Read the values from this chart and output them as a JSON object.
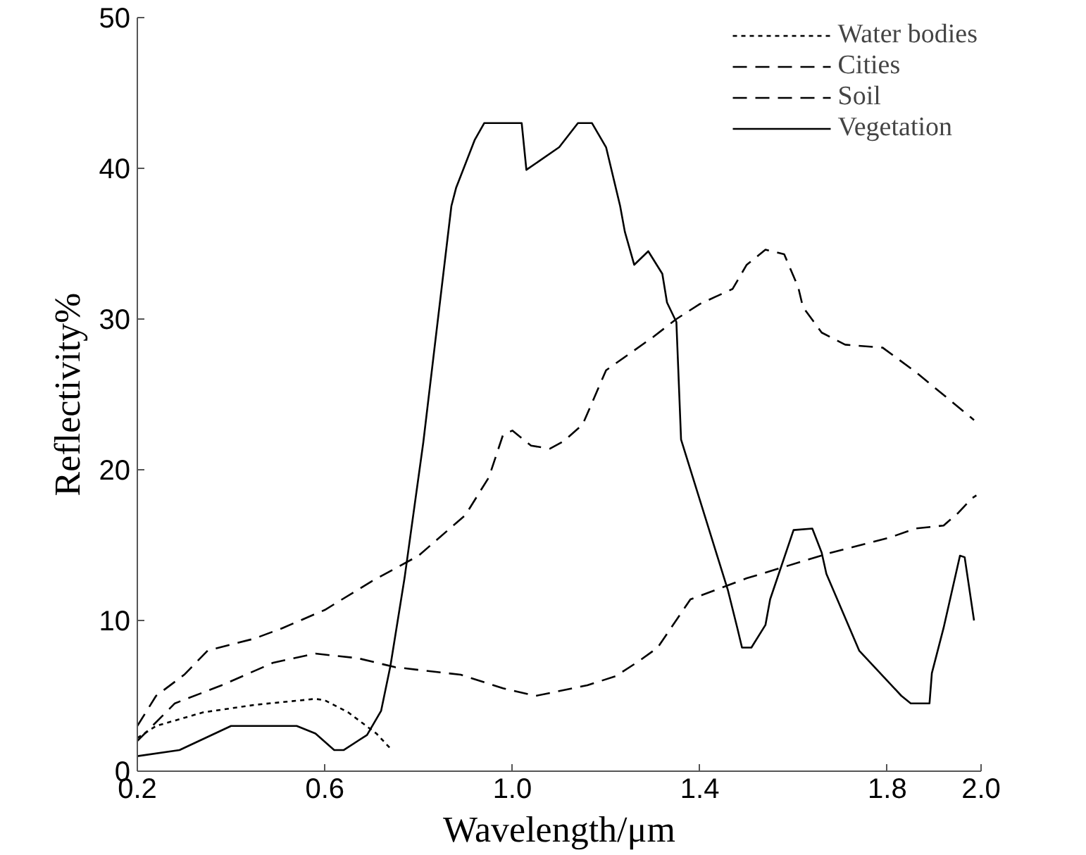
{
  "chart_data": {
    "type": "line",
    "xlabel": "Wavelength/μm",
    "ylabel": "Reflectivity%",
    "xlim": [
      0.2,
      2.0
    ],
    "ylim": [
      0,
      50
    ],
    "xticks": [
      0.2,
      0.6,
      {
        "value": 1.0,
        "label": "1.0"
      },
      1.4,
      1.8,
      {
        "value": 2.0,
        "label": "2.0"
      }
    ],
    "yticks": [
      0,
      10,
      20,
      30,
      40,
      50
    ],
    "grid": false,
    "legend": "top right",
    "marker": "none",
    "series": [
      {
        "name": "Water bodies",
        "color": "#000000",
        "line_style": "dotted",
        "x": [
          0.2,
          0.24,
          0.34,
          0.45,
          0.58,
          0.6,
          0.65,
          0.71,
          0.74
        ],
        "values": [
          2.2,
          3.0,
          3.9,
          4.4,
          4.8,
          4.7,
          3.9,
          2.5,
          1.5
        ]
      },
      {
        "name": "Cities",
        "color": "#000000",
        "line_style": "dashed",
        "x": [
          0.2,
          0.28,
          0.38,
          0.49,
          0.58,
          0.67,
          0.75,
          0.89,
          0.98,
          1.05,
          1.16,
          1.22,
          1.27,
          1.31,
          1.38,
          1.5,
          1.68,
          1.805,
          1.86,
          1.92,
          1.95,
          1.98,
          1.99
        ],
        "values": [
          2.0,
          4.5,
          5.7,
          7.2,
          7.8,
          7.5,
          6.9,
          6.4,
          5.5,
          5.0,
          5.7,
          6.3,
          7.3,
          8.2,
          11.4,
          12.8,
          14.5,
          15.5,
          16.1,
          16.3,
          17.1,
          18.1,
          18.3
        ]
      },
      {
        "name": "Soil",
        "color": "#000000",
        "line_style": "dashed",
        "x": [
          0.2,
          0.24,
          0.3,
          0.35,
          0.4,
          0.45,
          0.51,
          0.6,
          0.7,
          0.8,
          0.9,
          0.95,
          0.98,
          1.0,
          1.04,
          1.08,
          1.11,
          1.15,
          1.2,
          1.3,
          1.35,
          1.4,
          1.47,
          1.5,
          1.54,
          1.58,
          1.61,
          1.62,
          1.66,
          1.71,
          1.79,
          1.86,
          1.985
        ],
        "values": [
          3.0,
          5.0,
          6.4,
          8.0,
          8.4,
          8.8,
          9.5,
          10.7,
          12.6,
          14.3,
          17.0,
          19.5,
          22.3,
          22.6,
          21.6,
          21.4,
          21.9,
          23.0,
          26.6,
          28.8,
          30.0,
          31.0,
          32.0,
          33.6,
          34.6,
          34.3,
          32.1,
          30.8,
          29.1,
          28.3,
          28.1,
          26.5,
          23.3
        ]
      },
      {
        "name": "Vegetation",
        "color": "#000000",
        "line_style": "solid",
        "x": [
          0.2,
          0.29,
          0.4,
          0.54,
          0.58,
          0.62,
          0.64,
          0.69,
          0.72,
          0.74,
          0.77,
          0.81,
          0.87,
          0.88,
          0.92,
          0.94,
          1.02,
          1.03,
          1.1,
          1.14,
          1.17,
          1.2,
          1.23,
          1.24,
          1.26,
          1.29,
          1.32,
          1.33,
          1.35,
          1.36,
          1.46,
          1.48,
          1.49,
          1.51,
          1.54,
          1.55,
          1.6,
          1.64,
          1.66,
          1.67,
          1.74,
          1.8,
          1.83,
          1.85,
          1.89,
          1.895,
          1.92,
          1.955,
          1.965,
          1.985
        ],
        "values": [
          1.0,
          1.4,
          3.0,
          3.0,
          2.5,
          1.4,
          1.4,
          2.4,
          4.0,
          7.0,
          12.8,
          21.8,
          37.5,
          38.7,
          41.9,
          43.0,
          43.0,
          39.9,
          41.4,
          43.0,
          43.0,
          41.4,
          37.5,
          35.8,
          33.6,
          34.5,
          33.0,
          31.1,
          29.8,
          22.0,
          12.0,
          9.5,
          8.2,
          8.2,
          9.7,
          11.4,
          16.0,
          16.1,
          14.5,
          13.1,
          8.0,
          6.0,
          5.0,
          4.5,
          4.5,
          6.5,
          9.5,
          14.3,
          14.2,
          10.0
        ]
      }
    ]
  }
}
